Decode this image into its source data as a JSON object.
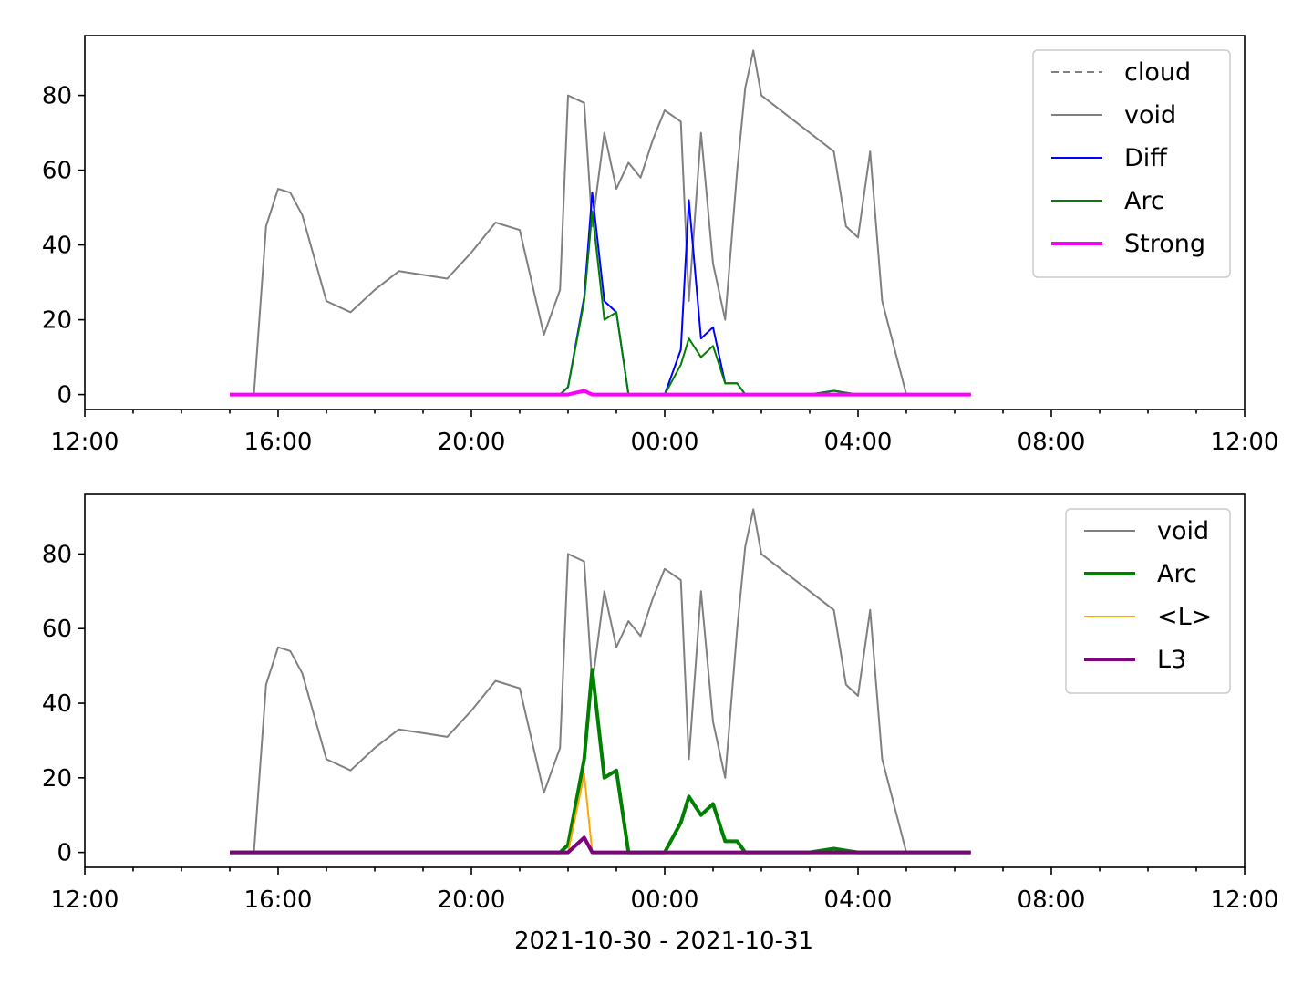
{
  "chart_data": [
    {
      "type": "line",
      "panel": "top",
      "title": "",
      "xlabel": "",
      "ylabel": "",
      "ylim": [
        -4,
        96
      ],
      "yticks": [
        0,
        20,
        40,
        60,
        80
      ],
      "xlim": [
        "2021-10-30 12:00",
        "2021-10-31 12:00"
      ],
      "xticks": [
        "12:00",
        "16:00",
        "20:00",
        "00:00",
        "04:00",
        "08:00",
        "12:00"
      ],
      "grid": false,
      "legend_position": "top-right",
      "legend": [
        "cloud",
        "void",
        "Diff",
        "Arc",
        "Strong"
      ],
      "x_times": [
        "2021-10-30 15:00",
        "2021-10-30 15:30",
        "2021-10-30 15:45",
        "2021-10-30 16:00",
        "2021-10-30 16:15",
        "2021-10-30 16:30",
        "2021-10-30 17:00",
        "2021-10-30 17:30",
        "2021-10-30 18:00",
        "2021-10-30 18:30",
        "2021-10-30 19:00",
        "2021-10-30 19:30",
        "2021-10-30 20:00",
        "2021-10-30 20:30",
        "2021-10-30 21:00",
        "2021-10-30 21:30",
        "2021-10-30 21:50",
        "2021-10-30 22:00",
        "2021-10-30 22:20",
        "2021-10-30 22:30",
        "2021-10-30 22:45",
        "2021-10-30 23:00",
        "2021-10-30 23:15",
        "2021-10-30 23:30",
        "2021-10-30 23:45",
        "2021-10-31 00:00",
        "2021-10-31 00:20",
        "2021-10-31 00:30",
        "2021-10-31 00:45",
        "2021-10-31 01:00",
        "2021-10-31 01:15",
        "2021-10-31 01:30",
        "2021-10-31 01:40",
        "2021-10-31 01:50",
        "2021-10-31 02:00",
        "2021-10-31 02:30",
        "2021-10-31 03:00",
        "2021-10-31 03:30",
        "2021-10-31 03:45",
        "2021-10-31 04:00",
        "2021-10-31 04:15",
        "2021-10-31 04:30",
        "2021-10-31 05:00",
        "2021-10-31 05:30",
        "2021-10-31 06:00",
        "2021-10-31 06:20"
      ],
      "series": [
        {
          "name": "cloud",
          "color": "#808080",
          "style": "dashed",
          "values": []
        },
        {
          "name": "void",
          "color": "#808080",
          "style": "solid",
          "values": [
            0,
            0,
            45,
            55,
            54,
            48,
            25,
            22,
            28,
            33,
            32,
            31,
            38,
            46,
            44,
            16,
            28,
            80,
            78,
            45,
            70,
            55,
            62,
            58,
            68,
            76,
            73,
            25,
            70,
            35,
            20,
            60,
            82,
            92,
            80,
            75,
            70,
            65,
            45,
            42,
            65,
            25,
            0,
            0,
            0,
            0
          ]
        },
        {
          "name": "Diff",
          "color": "#0000ff",
          "style": "solid",
          "values": [
            0,
            0,
            0,
            0,
            0,
            0,
            0,
            0,
            0,
            0,
            0,
            0,
            0,
            0,
            0,
            0,
            0,
            2,
            26,
            54,
            25,
            22,
            0,
            0,
            0,
            0,
            12,
            52,
            15,
            18,
            3,
            3,
            0,
            0,
            0,
            0,
            0,
            1,
            0.5,
            0,
            0,
            0,
            0,
            0,
            0,
            0
          ]
        },
        {
          "name": "Arc",
          "color": "#008000",
          "style": "solid",
          "values": [
            0,
            0,
            0,
            0,
            0,
            0,
            0,
            0,
            0,
            0,
            0,
            0,
            0,
            0,
            0,
            0,
            0,
            2,
            25,
            49,
            20,
            22,
            0,
            0,
            0,
            0,
            8,
            15,
            10,
            13,
            3,
            3,
            0,
            0,
            0,
            0,
            0,
            1,
            0.5,
            0,
            0,
            0,
            0,
            0,
            0,
            0
          ]
        },
        {
          "name": "Strong",
          "color": "#ff00ff",
          "style": "solid-thick",
          "values": [
            0,
            0,
            0,
            0,
            0,
            0,
            0,
            0,
            0,
            0,
            0,
            0,
            0,
            0,
            0,
            0,
            0,
            0,
            1,
            0,
            0,
            0,
            0,
            0,
            0,
            0,
            0,
            0,
            0,
            0,
            0,
            0,
            0,
            0,
            0,
            0,
            0,
            0,
            0,
            0,
            0,
            0,
            0,
            0,
            0,
            0
          ]
        }
      ]
    },
    {
      "type": "line",
      "panel": "bottom",
      "title": "",
      "xlabel": "2021-10-30 - 2021-10-31",
      "ylabel": "",
      "ylim": [
        -4,
        96
      ],
      "yticks": [
        0,
        20,
        40,
        60,
        80
      ],
      "xlim": [
        "2021-10-30 12:00",
        "2021-10-31 12:00"
      ],
      "xticks": [
        "12:00",
        "16:00",
        "20:00",
        "00:00",
        "04:00",
        "08:00",
        "12:00"
      ],
      "grid": false,
      "legend_position": "top-right",
      "legend": [
        "void",
        "Arc",
        "<L>",
        "L3"
      ],
      "x_times": [
        "2021-10-30 15:00",
        "2021-10-30 15:30",
        "2021-10-30 15:45",
        "2021-10-30 16:00",
        "2021-10-30 16:15",
        "2021-10-30 16:30",
        "2021-10-30 17:00",
        "2021-10-30 17:30",
        "2021-10-30 18:00",
        "2021-10-30 18:30",
        "2021-10-30 19:00",
        "2021-10-30 19:30",
        "2021-10-30 20:00",
        "2021-10-30 20:30",
        "2021-10-30 21:00",
        "2021-10-30 21:30",
        "2021-10-30 21:50",
        "2021-10-30 22:00",
        "2021-10-30 22:20",
        "2021-10-30 22:30",
        "2021-10-30 22:45",
        "2021-10-30 23:00",
        "2021-10-30 23:15",
        "2021-10-30 23:30",
        "2021-10-30 23:45",
        "2021-10-31 00:00",
        "2021-10-31 00:20",
        "2021-10-31 00:30",
        "2021-10-31 00:45",
        "2021-10-31 01:00",
        "2021-10-31 01:15",
        "2021-10-31 01:30",
        "2021-10-31 01:40",
        "2021-10-31 01:50",
        "2021-10-31 02:00",
        "2021-10-31 02:30",
        "2021-10-31 03:00",
        "2021-10-31 03:30",
        "2021-10-31 03:45",
        "2021-10-31 04:00",
        "2021-10-31 04:15",
        "2021-10-31 04:30",
        "2021-10-31 05:00",
        "2021-10-31 05:30",
        "2021-10-31 06:00",
        "2021-10-31 06:20"
      ],
      "series": [
        {
          "name": "void",
          "color": "#808080",
          "style": "solid",
          "values": [
            0,
            0,
            45,
            55,
            54,
            48,
            25,
            22,
            28,
            33,
            32,
            31,
            38,
            46,
            44,
            16,
            28,
            80,
            78,
            45,
            70,
            55,
            62,
            58,
            68,
            76,
            73,
            25,
            70,
            35,
            20,
            60,
            82,
            92,
            80,
            75,
            70,
            65,
            45,
            42,
            65,
            25,
            0,
            0,
            0,
            0
          ]
        },
        {
          "name": "Arc",
          "color": "#008000",
          "style": "solid-thick",
          "values": [
            0,
            0,
            0,
            0,
            0,
            0,
            0,
            0,
            0,
            0,
            0,
            0,
            0,
            0,
            0,
            0,
            0,
            2,
            25,
            49,
            20,
            22,
            0,
            0,
            0,
            0,
            8,
            15,
            10,
            13,
            3,
            3,
            0,
            0,
            0,
            0,
            0,
            1,
            0.5,
            0,
            0,
            0,
            0,
            0,
            0,
            0
          ]
        },
        {
          "name": "<L>",
          "color": "#ffa500",
          "style": "solid",
          "values": [
            0,
            0,
            0,
            0,
            0,
            0,
            0,
            0,
            0,
            0,
            0,
            0,
            0,
            0,
            0,
            0,
            0,
            0,
            21,
            0,
            0,
            0,
            0,
            0,
            0,
            0,
            0,
            0,
            0,
            0,
            0,
            0,
            0,
            0,
            0,
            0,
            0,
            0,
            0,
            0,
            0,
            0,
            0,
            0,
            0,
            0
          ]
        },
        {
          "name": "L3",
          "color": "#800080",
          "style": "solid-thick",
          "values": [
            0,
            0,
            0,
            0,
            0,
            0,
            0,
            0,
            0,
            0,
            0,
            0,
            0,
            0,
            0,
            0,
            0,
            0,
            4,
            0,
            0,
            0,
            0,
            0,
            0,
            0,
            0,
            0,
            0,
            0,
            0,
            0,
            0,
            0,
            0,
            0,
            0,
            0,
            0,
            0,
            0,
            0,
            0,
            0,
            0,
            0
          ]
        }
      ]
    }
  ]
}
